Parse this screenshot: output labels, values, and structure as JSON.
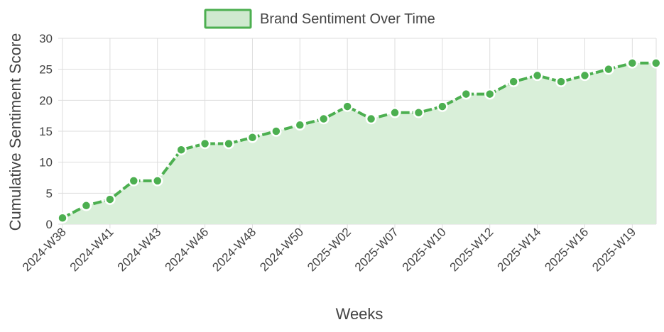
{
  "chart_data": {
    "type": "area",
    "title": "",
    "legend": {
      "label": "Brand Sentiment Over Time",
      "position": "top-center"
    },
    "xlabel": "Weeks",
    "ylabel": "Cumulative Sentiment Score",
    "ylim": [
      0,
      30
    ],
    "yticks": [
      0,
      5,
      10,
      15,
      20,
      25,
      30
    ],
    "x_tick_labels": [
      "2024-W38",
      "2024-W41",
      "2024-W43",
      "2024-W46",
      "2024-W48",
      "2024-W50",
      "2025-W02",
      "2025-W07",
      "2025-W10",
      "2025-W12",
      "2025-W14",
      "2025-W16",
      "2025-W19"
    ],
    "grid": true,
    "colors": {
      "line": "#4caf50",
      "fill": "#d9efd9",
      "legend_fill": "#cfe9cf"
    },
    "series": [
      {
        "name": "Brand Sentiment Over Time",
        "values": [
          1,
          3,
          4,
          7,
          7,
          12,
          13,
          13,
          14,
          15,
          16,
          17,
          19,
          17,
          18,
          18,
          19,
          21,
          21,
          23,
          24,
          23,
          24,
          25,
          26,
          26
        ]
      }
    ]
  }
}
